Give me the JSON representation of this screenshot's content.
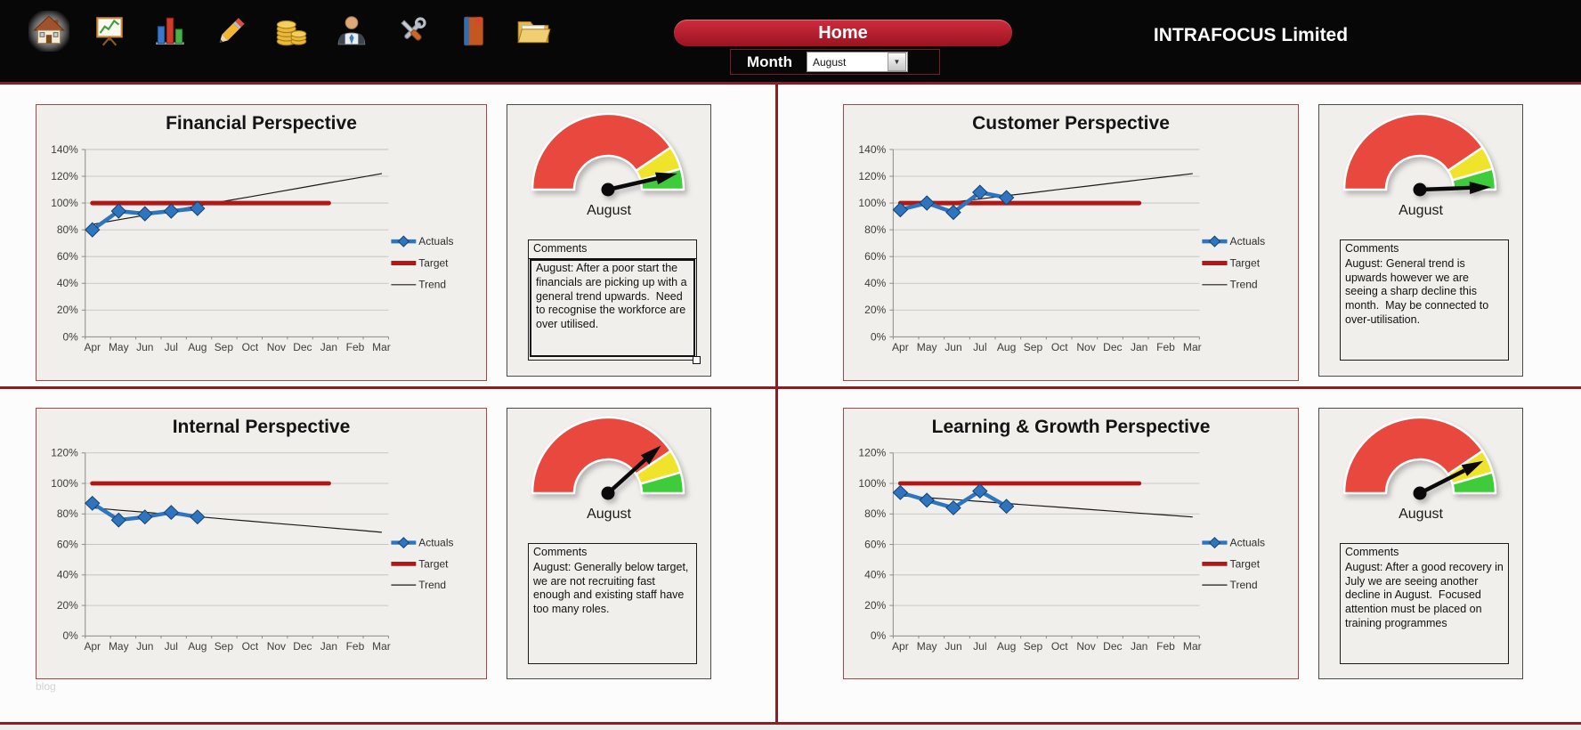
{
  "header": {
    "company": "INTRAFOCUS Limited",
    "home_button": "Home",
    "month_label": "Month",
    "month_value": "August",
    "dropdown_icon": "▼",
    "icons": [
      "home",
      "presentation-chart",
      "bar-chart",
      "pencil",
      "coins",
      "user",
      "tools",
      "book",
      "folder"
    ]
  },
  "footer_note": "blog",
  "gauge_colors": {
    "red": "#e8483e",
    "yellow": "#f0e32c",
    "green": "#3fcc3a"
  },
  "quadrants": [
    {
      "title": "Financial Perspective",
      "gauge": {
        "label": "August",
        "needle_deg": 13,
        "segments": [
          {
            "color": "red",
            "from": 180,
            "to": 34
          },
          {
            "color": "yellow",
            "from": 34,
            "to": 16
          },
          {
            "color": "green",
            "from": 16,
            "to": 0
          }
        ]
      },
      "comments": {
        "title": "Comments",
        "text": "August: After a poor start the financials are picking up with a general trend upwards.  Need to recognise the workforce are over utilised.",
        "selected": true
      },
      "chart_data": {
        "type": "line",
        "categories": [
          "Apr",
          "May",
          "Jun",
          "Jul",
          "Aug",
          "Sep",
          "Oct",
          "Nov",
          "Dec",
          "Jan",
          "Feb",
          "Mar"
        ],
        "ylim": [
          0,
          140
        ],
        "ytick_step": 20,
        "grid": true,
        "legend_position": "right",
        "series": [
          {
            "name": "Actuals",
            "color": "#2e74bf",
            "edge": "#14416f",
            "width": 4.5,
            "marker": "diamond",
            "values": [
              80,
              94,
              92,
              94,
              96,
              null,
              null,
              null,
              null,
              null,
              null,
              null
            ]
          },
          {
            "name": "Target",
            "color": "#b01818",
            "width": 5,
            "values": [
              100,
              100,
              100,
              100,
              100,
              100,
              100,
              100,
              100,
              100,
              null,
              null
            ]
          },
          {
            "name": "Trend",
            "color": "#1a1a1a",
            "width": 1.2,
            "values": [
              84,
              87.5,
              90.9,
              94.4,
              97.8,
              101.3,
              104.7,
              108.2,
              111.6,
              115.1,
              118.5,
              122
            ]
          }
        ]
      }
    },
    {
      "title": "Customer Perspective",
      "gauge": {
        "label": "August",
        "needle_deg": 2,
        "segments": [
          {
            "color": "red",
            "from": 180,
            "to": 34
          },
          {
            "color": "yellow",
            "from": 34,
            "to": 16
          },
          {
            "color": "green",
            "from": 16,
            "to": 0
          }
        ]
      },
      "comments": {
        "title": "Comments",
        "text": "August: General trend is upwards however we are seeing a sharp decline this month.  May be connected to over-utilisation.",
        "selected": false
      },
      "chart_data": {
        "type": "line",
        "categories": [
          "Apr",
          "May",
          "Jun",
          "Jul",
          "Aug",
          "Sep",
          "Oct",
          "Nov",
          "Dec",
          "Jan",
          "Feb",
          "Mar"
        ],
        "ylim": [
          0,
          140
        ],
        "ytick_step": 20,
        "grid": true,
        "legend_position": "right",
        "series": [
          {
            "name": "Actuals",
            "color": "#2e74bf",
            "edge": "#14416f",
            "width": 4.5,
            "marker": "diamond",
            "values": [
              95,
              100,
              93,
              108,
              104,
              null,
              null,
              null,
              null,
              null,
              null,
              null
            ]
          },
          {
            "name": "Target",
            "color": "#b01818",
            "width": 5,
            "values": [
              100,
              100,
              100,
              100,
              100,
              100,
              100,
              100,
              100,
              100,
              null,
              null
            ]
          },
          {
            "name": "Trend",
            "color": "#1a1a1a",
            "width": 1.2,
            "values": [
              96,
              98.4,
              100.7,
              103.1,
              105.5,
              107.8,
              110.2,
              112.5,
              114.9,
              117.3,
              119.6,
              122
            ]
          }
        ]
      }
    },
    {
      "title": "Internal Perspective",
      "gauge": {
        "label": "August",
        "needle_deg": 42,
        "segments": [
          {
            "color": "red",
            "from": 180,
            "to": 34
          },
          {
            "color": "yellow",
            "from": 34,
            "to": 16
          },
          {
            "color": "green",
            "from": 16,
            "to": 0
          }
        ]
      },
      "comments": {
        "title": "Comments",
        "text": "August: Generally below target, we are not recruiting fast enough and existing staff have too many roles.",
        "selected": false
      },
      "chart_data": {
        "type": "line",
        "categories": [
          "Apr",
          "May",
          "Jun",
          "Jul",
          "Aug",
          "Sep",
          "Oct",
          "Nov",
          "Dec",
          "Jan",
          "Feb",
          "Mar"
        ],
        "ylim": [
          0,
          120
        ],
        "ytick_step": 20,
        "grid": true,
        "legend_position": "right",
        "series": [
          {
            "name": "Actuals",
            "color": "#2e74bf",
            "edge": "#14416f",
            "width": 4.5,
            "marker": "diamond",
            "values": [
              87,
              76,
              78,
              81,
              78,
              null,
              null,
              null,
              null,
              null,
              null,
              null
            ]
          },
          {
            "name": "Target",
            "color": "#b01818",
            "width": 5,
            "values": [
              100,
              100,
              100,
              100,
              100,
              100,
              100,
              100,
              100,
              100,
              null,
              null
            ]
          },
          {
            "name": "Trend",
            "color": "#1a1a1a",
            "width": 1.2,
            "values": [
              84,
              82.5,
              81.1,
              79.6,
              78.2,
              76.7,
              75.3,
              73.8,
              72.4,
              70.9,
              69.5,
              68
            ]
          }
        ]
      }
    },
    {
      "title": "Learning & Growth Perspective",
      "gauge": {
        "label": "August",
        "needle_deg": 27,
        "segments": [
          {
            "color": "red",
            "from": 180,
            "to": 34
          },
          {
            "color": "yellow",
            "from": 34,
            "to": 16
          },
          {
            "color": "green",
            "from": 16,
            "to": 0
          }
        ]
      },
      "comments": {
        "title": "Comments",
        "text": "August: After a good recovery in July we are seeing another decline in August.  Focused attention must be placed on training programmes",
        "selected": false
      },
      "chart_data": {
        "type": "line",
        "categories": [
          "Apr",
          "May",
          "Jun",
          "Jul",
          "Aug",
          "Sep",
          "Oct",
          "Nov",
          "Dec",
          "Jan",
          "Feb",
          "Mar"
        ],
        "ylim": [
          0,
          120
        ],
        "ytick_step": 20,
        "grid": true,
        "legend_position": "right",
        "series": [
          {
            "name": "Actuals",
            "color": "#2e74bf",
            "edge": "#14416f",
            "width": 4.5,
            "marker": "diamond",
            "values": [
              94,
              89,
              84,
              95,
              85,
              null,
              null,
              null,
              null,
              null,
              null,
              null
            ]
          },
          {
            "name": "Target",
            "color": "#b01818",
            "width": 5,
            "values": [
              100,
              100,
              100,
              100,
              100,
              100,
              100,
              100,
              100,
              100,
              null,
              null
            ]
          },
          {
            "name": "Trend",
            "color": "#1a1a1a",
            "width": 1.2,
            "values": [
              92,
              90.7,
              89.5,
              88.2,
              86.9,
              85.6,
              84.4,
              83.1,
              81.8,
              80.5,
              79.3,
              78
            ]
          }
        ]
      }
    }
  ]
}
